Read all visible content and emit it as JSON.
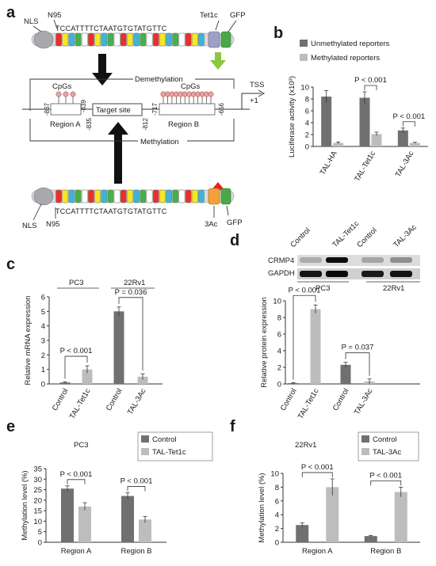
{
  "panel_labels": [
    "a",
    "b",
    "c",
    "d",
    "e",
    "f"
  ],
  "schematic": {
    "sequence": "TCCATTTTCTAATGTGTATGTTC",
    "labels": {
      "nls": "NLS",
      "n95": "N95",
      "tet1c": "Tet1c",
      "gfp": "GFP",
      "ac3": "3Ac",
      "demethylation": "Demethylation",
      "methylation": "Methylation",
      "tss": "TSS",
      "tss_plus": "+1",
      "cpgs": "CpGs",
      "target_site": "Target site",
      "region_a": "Region A",
      "region_b": "Region B"
    },
    "positions": [
      "-867",
      "-839",
      "-835",
      "-812",
      "-717",
      "-656"
    ],
    "colors": {
      "nls": "#a7a9ac",
      "tet1c": "#9ea0c8",
      "ac3": "#f2a23a",
      "gfp_green": "#4aa84a",
      "green_arrow": "#8dc63f",
      "red_arrow": "#e8241c",
      "pin": "#e5a3a3"
    },
    "repeat_palette": [
      "#e8312a",
      "#f5e627",
      "#3fb4d6",
      "#47b04a",
      "#ffffff"
    ]
  },
  "western_blot": {
    "lanes": [
      "Control",
      "TAL-Tet1c",
      "Control",
      "TAL-3Ac"
    ],
    "rows": [
      "CRMP4",
      "GAPDH"
    ],
    "groups": [
      "PC3",
      "22Rv1"
    ],
    "crmp4_intensity": [
      0.22,
      0.95,
      0.25,
      0.35
    ],
    "gapdh_intensity": [
      0.9,
      0.95,
      0.88,
      0.9
    ]
  },
  "colors": {
    "dark": "#707070",
    "light": "#bdbdbd"
  },
  "chart_data": [
    {
      "panel": "b",
      "type": "bar",
      "categories": [
        "TAL-HA",
        "TAL-Tet1c",
        "TAL-3Ac"
      ],
      "ylabel": "Luciferase activity (x10³)",
      "ylim": [
        0,
        10
      ],
      "yticks": [
        0,
        2,
        4,
        6,
        8,
        10
      ],
      "legend_position": "top",
      "series": [
        {
          "name": "Unmethylated reporters",
          "values": [
            8.4,
            8.2,
            2.7
          ],
          "errors": [
            1.0,
            1.0,
            0.4
          ]
        },
        {
          "name": "Methylated reporters",
          "values": [
            0.6,
            2.1,
            0.6
          ],
          "errors": [
            0.15,
            0.3,
            0.1
          ]
        }
      ],
      "annotations": [
        {
          "text": "P < 0.001",
          "category": 1
        },
        {
          "text": "P < 0.001",
          "category": 2
        }
      ]
    },
    {
      "panel": "c",
      "type": "bar",
      "categories": [
        "Control",
        "TAL-Tet1c",
        "Control",
        "TAL-3Ac"
      ],
      "groups": [
        "PC3",
        "22Rv1"
      ],
      "ylabel": "Relative mRNA expression",
      "ylim": [
        0,
        6
      ],
      "yticks": [
        0,
        1,
        2,
        3,
        4,
        5,
        6
      ],
      "values": [
        0.1,
        1.0,
        5.0,
        0.5
      ],
      "errors": [
        0.05,
        0.25,
        0.3,
        0.2
      ],
      "bar_colors": [
        "dark",
        "light",
        "dark",
        "light"
      ],
      "annotations": [
        {
          "text": "P < 0.001",
          "pair": [
            0,
            1
          ]
        },
        {
          "text": "P = 0.036",
          "pair": [
            2,
            3
          ]
        }
      ]
    },
    {
      "panel": "d",
      "type": "bar",
      "categories": [
        "Control",
        "TAL-Tet1c",
        "Control",
        "TAL-3Ac"
      ],
      "ylabel": "Relative protein expression",
      "ylim": [
        0,
        10
      ],
      "yticks": [
        0,
        2,
        4,
        6,
        8,
        10
      ],
      "values": [
        0.1,
        9.0,
        2.3,
        0.3
      ],
      "errors": [
        0.05,
        0.5,
        0.3,
        0.3
      ],
      "bar_colors": [
        "dark",
        "light",
        "dark",
        "light"
      ],
      "annotations": [
        {
          "text": "P < 0.001",
          "pair": [
            0,
            1
          ]
        },
        {
          "text": "P = 0.037",
          "pair": [
            2,
            3
          ]
        }
      ]
    },
    {
      "panel": "e",
      "type": "bar",
      "title": "PC3",
      "categories": [
        "Region A",
        "Region B"
      ],
      "ylabel": "Methylation level (%)",
      "ylim": [
        0,
        35
      ],
      "yticks": [
        0,
        5,
        10,
        15,
        20,
        25,
        30,
        35
      ],
      "legend_position": "top-right",
      "series": [
        {
          "name": "Control",
          "values": [
            25.5,
            22.0
          ],
          "errors": [
            1.3,
            1.5
          ]
        },
        {
          "name": "TAL-Tet1c",
          "values": [
            17.0,
            10.8
          ],
          "errors": [
            1.8,
            1.5
          ]
        }
      ],
      "annotations": [
        {
          "text": "P < 0.001",
          "category": 0
        },
        {
          "text": "P < 0.001",
          "category": 1
        }
      ]
    },
    {
      "panel": "f",
      "type": "bar",
      "title": "22Rv1",
      "categories": [
        "Region A",
        "Region B"
      ],
      "ylabel": "Methylation level (%)",
      "ylim": [
        0,
        10
      ],
      "yticks": [
        0,
        2,
        4,
        6,
        8,
        10
      ],
      "legend_position": "top-right",
      "series": [
        {
          "name": "Control",
          "values": [
            2.5,
            0.9
          ],
          "errors": [
            0.3,
            0.1
          ]
        },
        {
          "name": "TAL-3Ac",
          "values": [
            8.0,
            7.3
          ],
          "errors": [
            1.2,
            0.7
          ]
        }
      ],
      "annotations": [
        {
          "text": "P < 0.001",
          "category": 0
        },
        {
          "text": "P < 0.001",
          "category": 1
        }
      ]
    }
  ]
}
